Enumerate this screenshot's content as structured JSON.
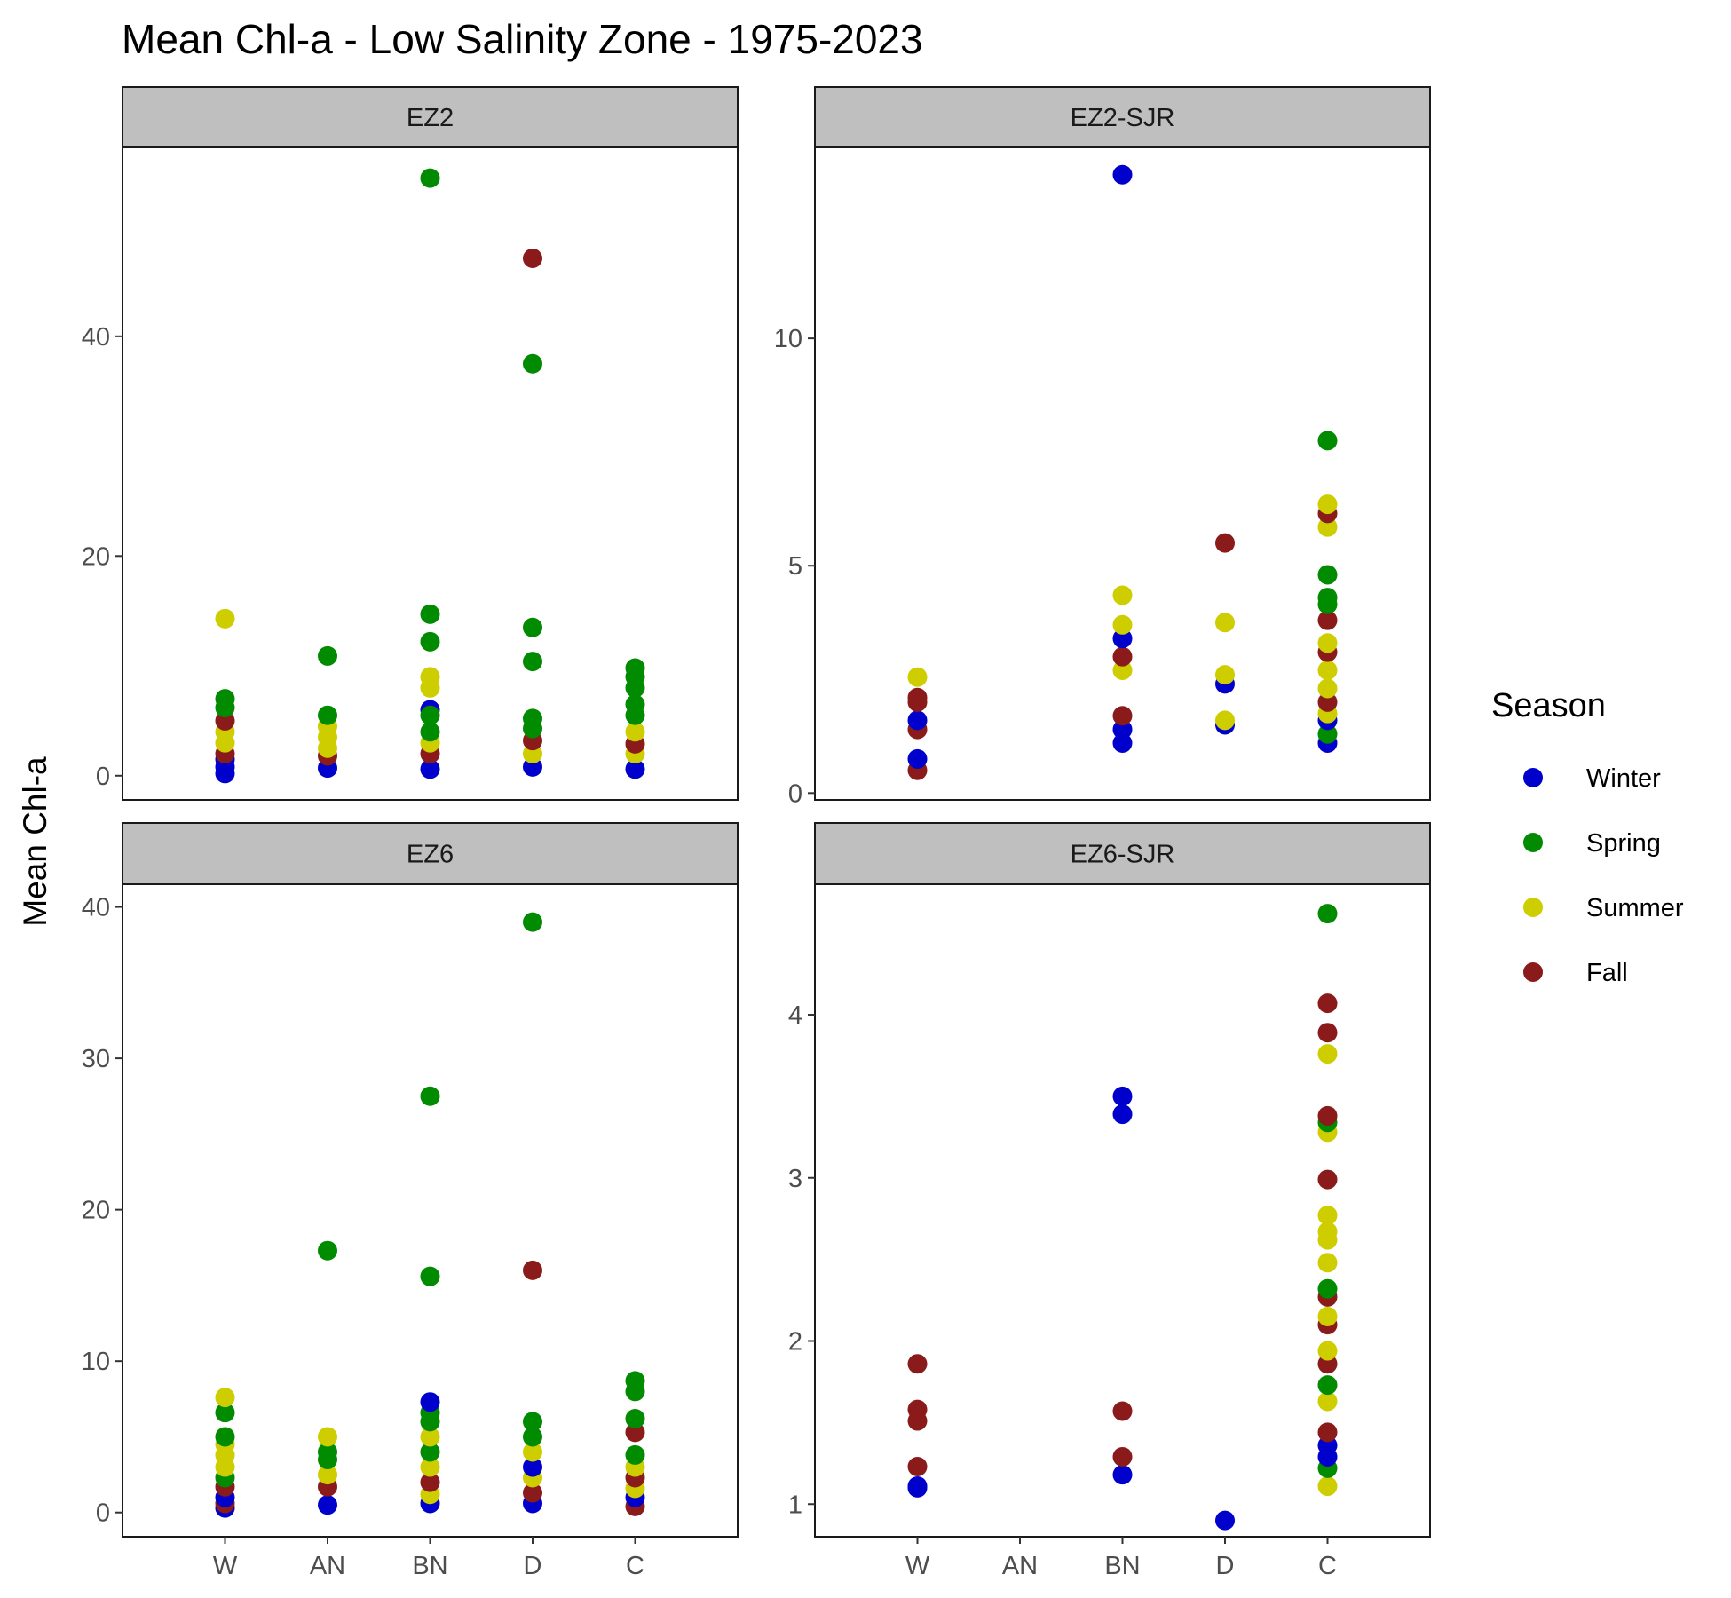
{
  "chart_data": {
    "type": "scatter",
    "title": "Mean Chl-a - Low Salinity Zone - 1975-2023",
    "ylabel": "Mean Chl-a",
    "xlabel": "",
    "categories": [
      "W",
      "AN",
      "BN",
      "D",
      "C"
    ],
    "legend": {
      "title": "Season",
      "position": "right",
      "items": [
        {
          "name": "Winter",
          "color": "#0000cd"
        },
        {
          "name": "Spring",
          "color": "#008b00"
        },
        {
          "name": "Summer",
          "color": "#cdcd00"
        },
        {
          "name": "Fall",
          "color": "#8b1a1a"
        }
      ]
    },
    "grid": false,
    "facets": [
      {
        "label": "EZ2",
        "ylim": [
          -2.2,
          57.2
        ],
        "yticks": [
          0,
          20,
          40
        ],
        "points": [
          {
            "x": "W",
            "season": "Winter",
            "y": 0.2
          },
          {
            "x": "W",
            "season": "Winter",
            "y": 0.8
          },
          {
            "x": "W",
            "season": "Winter",
            "y": 1.5
          },
          {
            "x": "W",
            "season": "Fall",
            "y": 2.0
          },
          {
            "x": "W",
            "season": "Summer",
            "y": 3.0
          },
          {
            "x": "W",
            "season": "Summer",
            "y": 4.0
          },
          {
            "x": "W",
            "season": "Fall",
            "y": 5.0
          },
          {
            "x": "W",
            "season": "Spring",
            "y": 6.2
          },
          {
            "x": "W",
            "season": "Spring",
            "y": 7.0
          },
          {
            "x": "W",
            "season": "Summer",
            "y": 14.3
          },
          {
            "x": "AN",
            "season": "Winter",
            "y": 0.7
          },
          {
            "x": "AN",
            "season": "Fall",
            "y": 1.8
          },
          {
            "x": "AN",
            "season": "Summer",
            "y": 2.5
          },
          {
            "x": "AN",
            "season": "Summer",
            "y": 3.5
          },
          {
            "x": "AN",
            "season": "Summer",
            "y": 4.5
          },
          {
            "x": "AN",
            "season": "Spring",
            "y": 5.5
          },
          {
            "x": "AN",
            "season": "Spring",
            "y": 10.9
          },
          {
            "x": "BN",
            "season": "Winter",
            "y": 0.6
          },
          {
            "x": "BN",
            "season": "Fall",
            "y": 2.0
          },
          {
            "x": "BN",
            "season": "Summer",
            "y": 3.0
          },
          {
            "x": "BN",
            "season": "Spring",
            "y": 4.0
          },
          {
            "x": "BN",
            "season": "Winter",
            "y": 6.0
          },
          {
            "x": "BN",
            "season": "Spring",
            "y": 5.5
          },
          {
            "x": "BN",
            "season": "Summer",
            "y": 8.0
          },
          {
            "x": "BN",
            "season": "Summer",
            "y": 9.0
          },
          {
            "x": "BN",
            "season": "Spring",
            "y": 12.2
          },
          {
            "x": "BN",
            "season": "Spring",
            "y": 14.7
          },
          {
            "x": "BN",
            "season": "Spring",
            "y": 54.4
          },
          {
            "x": "D",
            "season": "Winter",
            "y": 0.8
          },
          {
            "x": "D",
            "season": "Summer",
            "y": 2.0
          },
          {
            "x": "D",
            "season": "Fall",
            "y": 3.2
          },
          {
            "x": "D",
            "season": "Spring",
            "y": 4.3
          },
          {
            "x": "D",
            "season": "Spring",
            "y": 5.2
          },
          {
            "x": "D",
            "season": "Spring",
            "y": 10.4
          },
          {
            "x": "D",
            "season": "Spring",
            "y": 13.5
          },
          {
            "x": "D",
            "season": "Spring",
            "y": 37.5
          },
          {
            "x": "D",
            "season": "Fall",
            "y": 47.1
          },
          {
            "x": "C",
            "season": "Winter",
            "y": 0.6
          },
          {
            "x": "C",
            "season": "Summer",
            "y": 2.0
          },
          {
            "x": "C",
            "season": "Fall",
            "y": 2.9
          },
          {
            "x": "C",
            "season": "Summer",
            "y": 4.0
          },
          {
            "x": "C",
            "season": "Spring",
            "y": 5.5
          },
          {
            "x": "C",
            "season": "Spring",
            "y": 6.5
          },
          {
            "x": "C",
            "season": "Spring",
            "y": 8.0
          },
          {
            "x": "C",
            "season": "Spring",
            "y": 9.0
          },
          {
            "x": "C",
            "season": "Spring",
            "y": 9.8
          }
        ]
      },
      {
        "label": "EZ2-SJR",
        "ylim": [
          -0.15,
          14.2
        ],
        "yticks": [
          0,
          5,
          10
        ],
        "points": [
          {
            "x": "W",
            "season": "Fall",
            "y": 0.5
          },
          {
            "x": "W",
            "season": "Winter",
            "y": 0.75
          },
          {
            "x": "W",
            "season": "Fall",
            "y": 1.4
          },
          {
            "x": "W",
            "season": "Winter",
            "y": 1.6
          },
          {
            "x": "W",
            "season": "Fall",
            "y": 2.0
          },
          {
            "x": "W",
            "season": "Fall",
            "y": 2.1
          },
          {
            "x": "W",
            "season": "Summer",
            "y": 2.55
          },
          {
            "x": "BN",
            "season": "Winter",
            "y": 1.1
          },
          {
            "x": "BN",
            "season": "Winter",
            "y": 1.4
          },
          {
            "x": "BN",
            "season": "Fall",
            "y": 1.7
          },
          {
            "x": "BN",
            "season": "Summer",
            "y": 2.7
          },
          {
            "x": "BN",
            "season": "Fall",
            "y": 3.0
          },
          {
            "x": "BN",
            "season": "Winter",
            "y": 3.4
          },
          {
            "x": "BN",
            "season": "Summer",
            "y": 3.7
          },
          {
            "x": "BN",
            "season": "Summer",
            "y": 4.35
          },
          {
            "x": "BN",
            "season": "Winter",
            "y": 13.6
          },
          {
            "x": "D",
            "season": "Winter",
            "y": 1.5
          },
          {
            "x": "D",
            "season": "Summer",
            "y": 1.6
          },
          {
            "x": "D",
            "season": "Winter",
            "y": 2.4
          },
          {
            "x": "D",
            "season": "Summer",
            "y": 2.6
          },
          {
            "x": "D",
            "season": "Summer",
            "y": 3.75
          },
          {
            "x": "D",
            "season": "Fall",
            "y": 5.5
          },
          {
            "x": "C",
            "season": "Winter",
            "y": 1.1
          },
          {
            "x": "C",
            "season": "Spring",
            "y": 1.3
          },
          {
            "x": "C",
            "season": "Winter",
            "y": 1.6
          },
          {
            "x": "C",
            "season": "Summer",
            "y": 1.75
          },
          {
            "x": "C",
            "season": "Fall",
            "y": 2.0
          },
          {
            "x": "C",
            "season": "Summer",
            "y": 2.3
          },
          {
            "x": "C",
            "season": "Summer",
            "y": 2.7
          },
          {
            "x": "C",
            "season": "Fall",
            "y": 3.1
          },
          {
            "x": "C",
            "season": "Summer",
            "y": 3.3
          },
          {
            "x": "C",
            "season": "Fall",
            "y": 3.8
          },
          {
            "x": "C",
            "season": "Spring",
            "y": 4.15
          },
          {
            "x": "C",
            "season": "Spring",
            "y": 4.3
          },
          {
            "x": "C",
            "season": "Spring",
            "y": 4.8
          },
          {
            "x": "C",
            "season": "Summer",
            "y": 5.85
          },
          {
            "x": "C",
            "season": "Fall",
            "y": 6.15
          },
          {
            "x": "C",
            "season": "Summer",
            "y": 6.35
          },
          {
            "x": "C",
            "season": "Spring",
            "y": 7.75
          }
        ]
      },
      {
        "label": "EZ6",
        "ylim": [
          -1.6,
          41.5
        ],
        "yticks": [
          0,
          10,
          20,
          30,
          40
        ],
        "points": [
          {
            "x": "W",
            "season": "Winter",
            "y": 0.3
          },
          {
            "x": "W",
            "season": "Fall",
            "y": 0.6
          },
          {
            "x": "W",
            "season": "Winter",
            "y": 1.0
          },
          {
            "x": "W",
            "season": "Fall",
            "y": 1.7
          },
          {
            "x": "W",
            "season": "Spring",
            "y": 2.3
          },
          {
            "x": "W",
            "season": "Summer",
            "y": 3.0
          },
          {
            "x": "W",
            "season": "Summer",
            "y": 3.8
          },
          {
            "x": "W",
            "season": "Summer",
            "y": 4.5
          },
          {
            "x": "W",
            "season": "Spring",
            "y": 5.0
          },
          {
            "x": "W",
            "season": "Spring",
            "y": 6.6
          },
          {
            "x": "W",
            "season": "Summer",
            "y": 7.6
          },
          {
            "x": "AN",
            "season": "Winter",
            "y": 0.5
          },
          {
            "x": "AN",
            "season": "Fall",
            "y": 1.7
          },
          {
            "x": "AN",
            "season": "Summer",
            "y": 2.5
          },
          {
            "x": "AN",
            "season": "Spring",
            "y": 3.5
          },
          {
            "x": "AN",
            "season": "Spring",
            "y": 4.0
          },
          {
            "x": "AN",
            "season": "Summer",
            "y": 5.0
          },
          {
            "x": "AN",
            "season": "Spring",
            "y": 17.3
          },
          {
            "x": "BN",
            "season": "Winter",
            "y": 0.6
          },
          {
            "x": "BN",
            "season": "Summer",
            "y": 1.2
          },
          {
            "x": "BN",
            "season": "Fall",
            "y": 2.0
          },
          {
            "x": "BN",
            "season": "Summer",
            "y": 3.0
          },
          {
            "x": "BN",
            "season": "Spring",
            "y": 4.0
          },
          {
            "x": "BN",
            "season": "Summer",
            "y": 5.0
          },
          {
            "x": "BN",
            "season": "Spring",
            "y": 6.0
          },
          {
            "x": "BN",
            "season": "Spring",
            "y": 6.6
          },
          {
            "x": "BN",
            "season": "Winter",
            "y": 7.3
          },
          {
            "x": "BN",
            "season": "Spring",
            "y": 15.6
          },
          {
            "x": "BN",
            "season": "Spring",
            "y": 27.5
          },
          {
            "x": "D",
            "season": "Winter",
            "y": 0.6
          },
          {
            "x": "D",
            "season": "Fall",
            "y": 1.3
          },
          {
            "x": "D",
            "season": "Summer",
            "y": 2.3
          },
          {
            "x": "D",
            "season": "Winter",
            "y": 3.0
          },
          {
            "x": "D",
            "season": "Summer",
            "y": 4.0
          },
          {
            "x": "D",
            "season": "Spring",
            "y": 5.0
          },
          {
            "x": "D",
            "season": "Spring",
            "y": 6.0
          },
          {
            "x": "D",
            "season": "Fall",
            "y": 16.0
          },
          {
            "x": "D",
            "season": "Spring",
            "y": 39.0
          },
          {
            "x": "C",
            "season": "Fall",
            "y": 0.4
          },
          {
            "x": "C",
            "season": "Winter",
            "y": 1.0
          },
          {
            "x": "C",
            "season": "Summer",
            "y": 1.6
          },
          {
            "x": "C",
            "season": "Fall",
            "y": 2.3
          },
          {
            "x": "C",
            "season": "Summer",
            "y": 3.0
          },
          {
            "x": "C",
            "season": "Spring",
            "y": 3.8
          },
          {
            "x": "C",
            "season": "Fall",
            "y": 5.3
          },
          {
            "x": "C",
            "season": "Spring",
            "y": 6.2
          },
          {
            "x": "C",
            "season": "Spring",
            "y": 8.0
          },
          {
            "x": "C",
            "season": "Spring",
            "y": 8.7
          }
        ]
      },
      {
        "label": "EZ6-SJR",
        "ylim": [
          0.8,
          4.8
        ],
        "yticks": [
          1,
          2,
          3,
          4
        ],
        "points": [
          {
            "x": "W",
            "season": "Winter",
            "y": 1.1
          },
          {
            "x": "W",
            "season": "Winter",
            "y": 1.11
          },
          {
            "x": "W",
            "season": "Fall",
            "y": 1.23
          },
          {
            "x": "W",
            "season": "Fall",
            "y": 1.51
          },
          {
            "x": "W",
            "season": "Fall",
            "y": 1.58
          },
          {
            "x": "W",
            "season": "Fall",
            "y": 1.86
          },
          {
            "x": "BN",
            "season": "Winter",
            "y": 1.18
          },
          {
            "x": "BN",
            "season": "Fall",
            "y": 1.29
          },
          {
            "x": "BN",
            "season": "Fall",
            "y": 1.57
          },
          {
            "x": "BN",
            "season": "Winter",
            "y": 3.39
          },
          {
            "x": "BN",
            "season": "Winter",
            "y": 3.5
          },
          {
            "x": "D",
            "season": "Winter",
            "y": 0.9
          },
          {
            "x": "C",
            "season": "Summer",
            "y": 1.11
          },
          {
            "x": "C",
            "season": "Spring",
            "y": 1.22
          },
          {
            "x": "C",
            "season": "Winter",
            "y": 1.29
          },
          {
            "x": "C",
            "season": "Winter",
            "y": 1.36
          },
          {
            "x": "C",
            "season": "Fall",
            "y": 1.44
          },
          {
            "x": "C",
            "season": "Summer",
            "y": 1.63
          },
          {
            "x": "C",
            "season": "Spring",
            "y": 1.73
          },
          {
            "x": "C",
            "season": "Fall",
            "y": 1.86
          },
          {
            "x": "C",
            "season": "Summer",
            "y": 1.94
          },
          {
            "x": "C",
            "season": "Fall",
            "y": 2.1
          },
          {
            "x": "C",
            "season": "Summer",
            "y": 2.15
          },
          {
            "x": "C",
            "season": "Fall",
            "y": 2.27
          },
          {
            "x": "C",
            "season": "Spring",
            "y": 2.32
          },
          {
            "x": "C",
            "season": "Summer",
            "y": 2.48
          },
          {
            "x": "C",
            "season": "Summer",
            "y": 2.62
          },
          {
            "x": "C",
            "season": "Summer",
            "y": 2.67
          },
          {
            "x": "C",
            "season": "Summer",
            "y": 2.77
          },
          {
            "x": "C",
            "season": "Fall",
            "y": 2.99
          },
          {
            "x": "C",
            "season": "Summer",
            "y": 3.28
          },
          {
            "x": "C",
            "season": "Spring",
            "y": 3.34
          },
          {
            "x": "C",
            "season": "Fall",
            "y": 3.38
          },
          {
            "x": "C",
            "season": "Summer",
            "y": 3.76
          },
          {
            "x": "C",
            "season": "Fall",
            "y": 3.89
          },
          {
            "x": "C",
            "season": "Fall",
            "y": 4.07
          },
          {
            "x": "C",
            "season": "Spring",
            "y": 4.62
          }
        ]
      }
    ]
  }
}
